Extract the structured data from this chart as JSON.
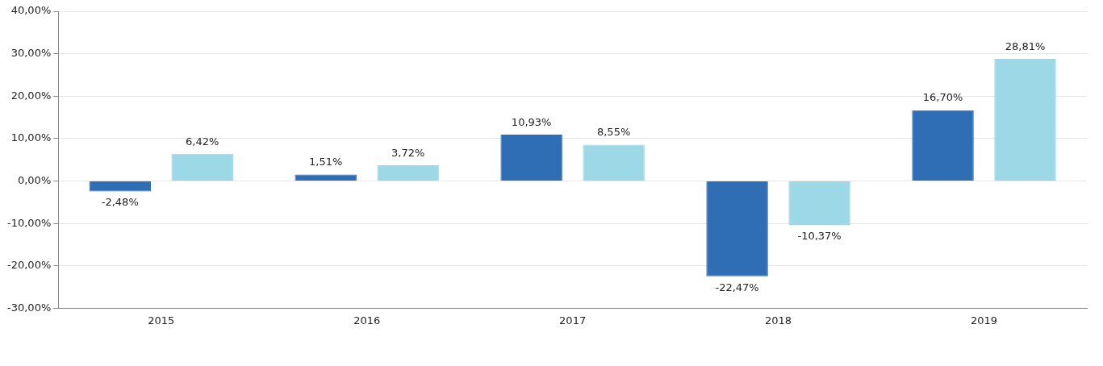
{
  "chart_data": {
    "type": "bar",
    "categories": [
      "2015",
      "2016",
      "2017",
      "2018",
      "2019"
    ],
    "series": [
      {
        "color": "#2f6db5",
        "values": [
          -2.48,
          1.51,
          10.93,
          -22.47,
          16.7
        ],
        "value_labels": [
          "-2,48%",
          "1,51%",
          "10,93%",
          "-22,47%",
          "16,70%"
        ]
      },
      {
        "color": "#9dd8e6",
        "values": [
          6.42,
          3.72,
          8.55,
          -10.37,
          28.81
        ],
        "value_labels": [
          "6,42%",
          "3,72%",
          "8,55%",
          "-10,37%",
          "28,81%"
        ]
      }
    ],
    "ylim": [
      -30,
      40
    ],
    "yticks": [
      {
        "value": -30,
        "label": "-30,00%"
      },
      {
        "value": -20,
        "label": "-20,00%"
      },
      {
        "value": -10,
        "label": "-10,00%"
      },
      {
        "value": 0,
        "label": "0,00%"
      },
      {
        "value": 10,
        "label": "10,00%"
      },
      {
        "value": 20,
        "label": "20,00%"
      },
      {
        "value": 30,
        "label": "30,00%"
      },
      {
        "value": 40,
        "label": "40,00%"
      }
    ],
    "grid": "y"
  }
}
